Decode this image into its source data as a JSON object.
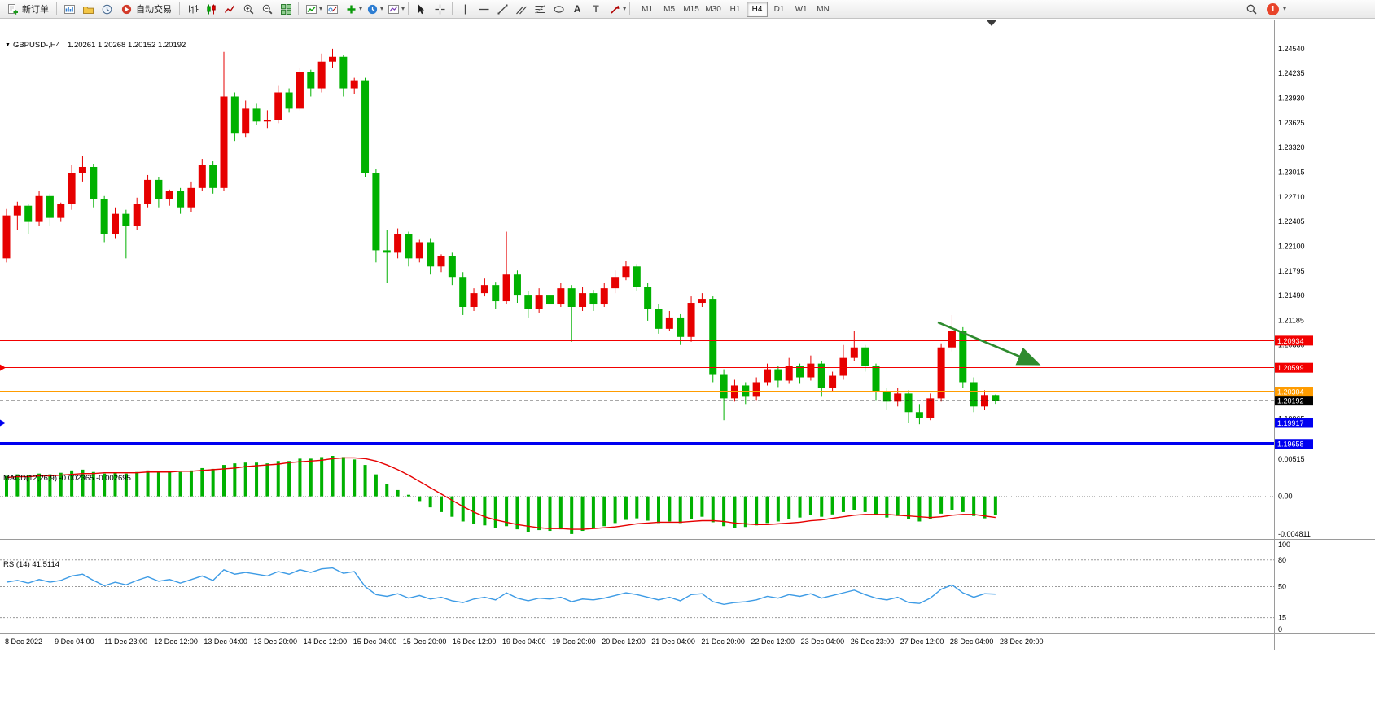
{
  "toolbar": {
    "new_order_label": "新订单",
    "autotrade_label": "自动交易",
    "timeframes": [
      "M1",
      "M5",
      "M15",
      "M30",
      "H1",
      "H4",
      "D1",
      "W1",
      "MN"
    ],
    "active_timeframe": "H4",
    "notification_count": "1",
    "icons": [
      "new-order-icon",
      "new-chart-icon",
      "profiles-icon",
      "market-watch-icon",
      "autotrade-icon",
      "bar-chart-icon",
      "candlestick-chart-icon",
      "line-chart-icon",
      "zoom-in-icon",
      "zoom-out-icon",
      "tile-windows-icon",
      "indicators-icon",
      "objects-list-icon",
      "add-indicator-icon",
      "periods-icon",
      "templates-icon",
      "cursor-icon",
      "crosshair-icon",
      "vertical-line-icon",
      "horizontal-line-icon",
      "trendline-icon",
      "channel-icon",
      "fibonacci-icon",
      "shapes-icon",
      "text-icon",
      "label-icon",
      "arrows-icon",
      "search-icon",
      "notification-badge",
      "chevron-down-icon"
    ]
  },
  "chart": {
    "symbol_label": "GBPUSD-,H4",
    "ohlc_label": "1.20261 1.20268 1.20152 1.20192",
    "macd_label": "MACD(12,26,9) -0.002365 -0.002695",
    "rsi_label": "RSI(14) 41.5114"
  },
  "colors": {
    "up": "#e60000",
    "down": "#00b100",
    "macd_bar": "#00b100",
    "macd_signal": "#e60000",
    "rsi_line": "#3d9bе5",
    "rsi_line_fix": "#3d9be5",
    "line_red": "#f20000",
    "line_orange": "#ff9c00",
    "line_blue": "#0000f0",
    "current_price": "#1a1a1a",
    "arrow_green": "#2e8b2e",
    "axis_text": "#000000",
    "separator": "#9a9a9a"
  },
  "chart_data": [
    {
      "type": "candlestick",
      "title": "GBPUSD-,H4",
      "current_bar": {
        "open": 1.20261,
        "high": 1.20268,
        "low": 1.20152,
        "close": 1.20192
      },
      "y_axis_range": [
        1.1958,
        1.2486
      ],
      "y_ticks": [
        "1.24540",
        "1.24235",
        "1.23930",
        "1.23625",
        "1.23320",
        "1.23015",
        "1.22710",
        "1.22405",
        "1.22100",
        "1.21795",
        "1.21490",
        "1.21185",
        "1.20880",
        "1.19965"
      ],
      "hlines": [
        {
          "price": 1.20934,
          "label": "1.20934",
          "color_key": "line_red",
          "width": 1,
          "edge_marker": false
        },
        {
          "price": 1.20599,
          "label": "1.20599",
          "color_key": "line_red",
          "width": 1,
          "edge_marker": true
        },
        {
          "price": 1.20304,
          "label": "1.20304",
          "color_key": "line_orange",
          "width": 2,
          "edge_marker": false
        },
        {
          "price": 1.19917,
          "label": "1.19917",
          "color_key": "line_blue",
          "width": 1,
          "edge_marker": true
        },
        {
          "price": 1.19658,
          "label": "1.19658",
          "color_key": "line_blue",
          "width": 4,
          "edge_marker": false
        }
      ],
      "current_price": {
        "price": 1.20192,
        "label": "1.20192"
      },
      "arrow_annotation": {
        "from_index": 85.7,
        "from_price": 1.2116,
        "to_index": 94.8,
        "to_price": 1.2065
      },
      "candles": [
        [
          1.2195,
          1.2256,
          1.219,
          1.2248
        ],
        [
          1.2248,
          1.2265,
          1.223,
          1.226
        ],
        [
          1.226,
          1.2262,
          1.2225,
          1.224
        ],
        [
          1.224,
          1.2278,
          1.2235,
          1.2272
        ],
        [
          1.2272,
          1.2275,
          1.2235,
          1.2245
        ],
        [
          1.2245,
          1.2264,
          1.224,
          1.2262
        ],
        [
          1.2262,
          1.231,
          1.2255,
          1.23
        ],
        [
          1.23,
          1.2322,
          1.229,
          1.2308
        ],
        [
          1.2308,
          1.2312,
          1.2258,
          1.2268
        ],
        [
          1.2268,
          1.2272,
          1.2215,
          1.2225
        ],
        [
          1.2225,
          1.2258,
          1.222,
          1.225
        ],
        [
          1.225,
          1.2255,
          1.2195,
          1.2235
        ],
        [
          1.2235,
          1.227,
          1.223,
          1.2262
        ],
        [
          1.2262,
          1.2298,
          1.2258,
          1.2292
        ],
        [
          1.2292,
          1.2295,
          1.2258,
          1.2268
        ],
        [
          1.2268,
          1.228,
          1.226,
          1.2278
        ],
        [
          1.2278,
          1.2282,
          1.225,
          1.2258
        ],
        [
          1.2258,
          1.229,
          1.2252,
          1.2282
        ],
        [
          1.2282,
          1.2318,
          1.2278,
          1.231
        ],
        [
          1.231,
          1.2315,
          1.2275,
          1.2282
        ],
        [
          1.2282,
          1.245,
          1.2278,
          1.2395
        ],
        [
          1.2395,
          1.24,
          1.234,
          1.235
        ],
        [
          1.235,
          1.239,
          1.2345,
          1.238
        ],
        [
          1.238,
          1.2386,
          1.236,
          1.2364
        ],
        [
          1.2364,
          1.2378,
          1.2356,
          1.2366
        ],
        [
          1.2366,
          1.2408,
          1.2362,
          1.24
        ],
        [
          1.24,
          1.2405,
          1.2375,
          1.238
        ],
        [
          1.238,
          1.243,
          1.2378,
          1.2425
        ],
        [
          1.2425,
          1.2428,
          1.2395,
          1.2405
        ],
        [
          1.2405,
          1.2448,
          1.24,
          1.2438
        ],
        [
          1.2438,
          1.2454,
          1.243,
          1.2444
        ],
        [
          1.2444,
          1.2446,
          1.2395,
          1.2405
        ],
        [
          1.2405,
          1.2418,
          1.2398,
          1.2415
        ],
        [
          1.2415,
          1.2418,
          1.2295,
          1.23
        ],
        [
          1.23,
          1.2305,
          1.219,
          1.2205
        ],
        [
          1.2205,
          1.223,
          1.2165,
          1.2202
        ],
        [
          1.2202,
          1.2232,
          1.2195,
          1.2225
        ],
        [
          1.2225,
          1.2228,
          1.2185,
          1.2195
        ],
        [
          1.2195,
          1.2218,
          1.219,
          1.2215
        ],
        [
          1.2215,
          1.222,
          1.2175,
          1.2185
        ],
        [
          1.2185,
          1.22,
          1.2178,
          1.2198
        ],
        [
          1.2198,
          1.2202,
          1.2162,
          1.2172
        ],
        [
          1.2172,
          1.2178,
          1.2125,
          1.2135
        ],
        [
          1.2135,
          1.2158,
          1.213,
          1.2152
        ],
        [
          1.2152,
          1.217,
          1.2148,
          1.2162
        ],
        [
          1.2162,
          1.2166,
          1.2132,
          1.2142
        ],
        [
          1.2142,
          1.2228,
          1.2138,
          1.2175
        ],
        [
          1.2175,
          1.218,
          1.214,
          1.215
        ],
        [
          1.215,
          1.2155,
          1.2122,
          1.2132
        ],
        [
          1.2132,
          1.2158,
          1.2128,
          1.215
        ],
        [
          1.215,
          1.2155,
          1.2128,
          1.2138
        ],
        [
          1.2138,
          1.2165,
          1.2135,
          1.2158
        ],
        [
          1.2158,
          1.2162,
          1.2092,
          1.2135
        ],
        [
          1.2135,
          1.216,
          1.213,
          1.2152
        ],
        [
          1.2152,
          1.2156,
          1.213,
          1.2138
        ],
        [
          1.2138,
          1.2165,
          1.2135,
          1.2158
        ],
        [
          1.2158,
          1.218,
          1.2152,
          1.2172
        ],
        [
          1.2172,
          1.2192,
          1.2168,
          1.2185
        ],
        [
          1.2185,
          1.2188,
          1.2155,
          1.216
        ],
        [
          1.216,
          1.2165,
          1.2118,
          1.2132
        ],
        [
          1.2132,
          1.2138,
          1.2102,
          1.2108
        ],
        [
          1.2108,
          1.213,
          1.2105,
          1.2122
        ],
        [
          1.2122,
          1.2126,
          1.2088,
          1.2098
        ],
        [
          1.2098,
          1.2148,
          1.2092,
          1.214
        ],
        [
          1.214,
          1.2152,
          1.2135,
          1.2145
        ],
        [
          1.2145,
          1.2148,
          1.2042,
          1.2052
        ],
        [
          1.2052,
          1.2058,
          1.1995,
          1.2022
        ],
        [
          1.2022,
          1.2045,
          1.2018,
          1.2038
        ],
        [
          1.2038,
          1.2042,
          1.2015,
          1.2025
        ],
        [
          1.2025,
          1.2048,
          1.202,
          1.2042
        ],
        [
          1.2042,
          1.2065,
          1.2038,
          1.2058
        ],
        [
          1.2058,
          1.2062,
          1.2036,
          1.2044
        ],
        [
          1.2044,
          1.2072,
          1.204,
          1.2062
        ],
        [
          1.2062,
          1.2065,
          1.204,
          1.2048
        ],
        [
          1.2048,
          1.2075,
          1.2044,
          1.2065
        ],
        [
          1.2065,
          1.2068,
          1.2025,
          1.2035
        ],
        [
          1.2035,
          1.2055,
          1.203,
          1.205
        ],
        [
          1.205,
          1.2088,
          1.2045,
          1.2072
        ],
        [
          1.2072,
          1.2105,
          1.2068,
          1.2085
        ],
        [
          1.2085,
          1.2088,
          1.2055,
          1.2062
        ],
        [
          1.2062,
          1.2065,
          1.202,
          1.203
        ],
        [
          1.203,
          1.2035,
          1.2008,
          1.2018
        ],
        [
          1.2018,
          1.2035,
          1.2012,
          1.2028
        ],
        [
          1.2028,
          1.2032,
          1.1992,
          1.2005
        ],
        [
          1.2005,
          1.2015,
          1.199,
          1.1998
        ],
        [
          1.1998,
          1.2028,
          1.1995,
          1.2022
        ],
        [
          1.2022,
          1.209,
          1.2018,
          1.2085
        ],
        [
          1.2085,
          1.2125,
          1.208,
          1.2105
        ],
        [
          1.2105,
          1.211,
          1.2035,
          1.2042
        ],
        [
          1.2042,
          1.2048,
          1.2005,
          1.2012
        ],
        [
          1.2012,
          1.2032,
          1.2008,
          1.20261
        ],
        [
          1.20261,
          1.20268,
          1.20152,
          1.20192
        ]
      ]
    },
    {
      "type": "bar",
      "name": "MACD",
      "params": "12,26,9",
      "value": -0.002365,
      "signal_value": -0.002695,
      "ticks": [
        [
          "0.00515",
          0.00515
        ],
        [
          "0.00",
          0
        ],
        [
          "-0.004811",
          -0.004811
        ]
      ],
      "values": [
        0.0026,
        0.0028,
        0.0027,
        0.0029,
        0.0028,
        0.003,
        0.0033,
        0.0034,
        0.0031,
        0.0029,
        0.003,
        0.0029,
        0.0031,
        0.0033,
        0.0032,
        0.0032,
        0.0031,
        0.0033,
        0.0036,
        0.0035,
        0.004,
        0.0042,
        0.0043,
        0.0043,
        0.0042,
        0.0045,
        0.0045,
        0.0048,
        0.0048,
        0.005,
        0.00515,
        0.005,
        0.0047,
        0.004,
        0.0028,
        0.0016,
        0.0008,
        0.0002,
        -0.0006,
        -0.0014,
        -0.002,
        -0.0026,
        -0.0032,
        -0.0035,
        -0.0037,
        -0.004,
        -0.0038,
        -0.0042,
        -0.0045,
        -0.0043,
        -0.0044,
        -0.0042,
        -0.0048,
        -0.0044,
        -0.0041,
        -0.0038,
        -0.0034,
        -0.003,
        -0.0028,
        -0.0031,
        -0.0034,
        -0.0032,
        -0.0034,
        -0.0029,
        -0.0026,
        -0.0033,
        -0.0038,
        -0.004,
        -0.0039,
        -0.0037,
        -0.0034,
        -0.0032,
        -0.0029,
        -0.0027,
        -0.0024,
        -0.0026,
        -0.0023,
        -0.002,
        -0.0018,
        -0.002,
        -0.0024,
        -0.0027,
        -0.0025,
        -0.0029,
        -0.0032,
        -0.0029,
        -0.0022,
        -0.0017,
        -0.002,
        -0.0025,
        -0.0028,
        -0.002365
      ],
      "signal": [
        0.0024,
        0.0025,
        0.0025,
        0.0026,
        0.0026,
        0.0027,
        0.0028,
        0.0029,
        0.0029,
        0.003,
        0.003,
        0.003,
        0.003,
        0.0031,
        0.0031,
        0.0031,
        0.0032,
        0.0032,
        0.0033,
        0.0034,
        0.0035,
        0.0036,
        0.0038,
        0.0039,
        0.004,
        0.0041,
        0.0043,
        0.0044,
        0.0045,
        0.0046,
        0.0048,
        0.0049,
        0.0049,
        0.0048,
        0.0045,
        0.004,
        0.0034,
        0.0027,
        0.0019,
        0.0011,
        0.0003,
        -0.0005,
        -0.0013,
        -0.002,
        -0.0026,
        -0.003,
        -0.0033,
        -0.0036,
        -0.0038,
        -0.004,
        -0.0041,
        -0.0041,
        -0.0042,
        -0.0042,
        -0.0041,
        -0.004,
        -0.0039,
        -0.0037,
        -0.0035,
        -0.0034,
        -0.0033,
        -0.0033,
        -0.0033,
        -0.0032,
        -0.0031,
        -0.0031,
        -0.0032,
        -0.0034,
        -0.0035,
        -0.0036,
        -0.0036,
        -0.0035,
        -0.0034,
        -0.0033,
        -0.0031,
        -0.003,
        -0.0028,
        -0.0026,
        -0.0024,
        -0.0023,
        -0.0023,
        -0.0023,
        -0.0024,
        -0.0025,
        -0.0026,
        -0.0027,
        -0.0026,
        -0.0024,
        -0.0023,
        -0.0023,
        -0.0025,
        -0.002695
      ]
    },
    {
      "type": "line",
      "name": "RSI",
      "params": "14",
      "value": 41.5114,
      "ticks": [
        [
          "100",
          100
        ],
        [
          "80",
          80
        ],
        [
          "50",
          50
        ],
        [
          "15",
          15
        ],
        [
          "0",
          0
        ]
      ],
      "levels": [
        80,
        50,
        15
      ],
      "values": [
        55,
        57,
        54,
        58,
        55,
        57,
        62,
        64,
        57,
        51,
        55,
        52,
        57,
        61,
        56,
        58,
        54,
        58,
        62,
        57,
        69,
        64,
        66,
        64,
        62,
        67,
        64,
        69,
        66,
        70,
        71,
        65,
        67,
        50,
        41,
        39,
        42,
        37,
        40,
        36,
        38,
        34,
        32,
        36,
        38,
        35,
        43,
        37,
        34,
        37,
        36,
        38,
        33,
        36,
        35,
        37,
        40,
        43,
        41,
        38,
        35,
        38,
        34,
        41,
        42,
        33,
        30,
        32,
        33,
        35,
        39,
        37,
        41,
        39,
        42,
        37,
        40,
        43,
        46,
        41,
        37,
        35,
        38,
        32,
        31,
        37,
        47,
        52,
        43,
        38,
        42,
        41.5114
      ]
    }
  ],
  "time_axis": {
    "labels": [
      "8 Dec 2022",
      "9 Dec 04:00",
      "11 Dec 23:00",
      "12 Dec 12:00",
      "13 Dec 04:00",
      "13 Dec 20:00",
      "14 Dec 12:00",
      "15 Dec 04:00",
      "15 Dec 20:00",
      "16 Dec 12:00",
      "19 Dec 04:00",
      "19 Dec 20:00",
      "20 Dec 12:00",
      "21 Dec 04:00",
      "21 Dec 20:00",
      "22 Dec 12:00",
      "23 Dec 04:00",
      "26 Dec 23:00",
      "27 Dec 12:00",
      "28 Dec 04:00",
      "28 Dec 20:00"
    ]
  }
}
